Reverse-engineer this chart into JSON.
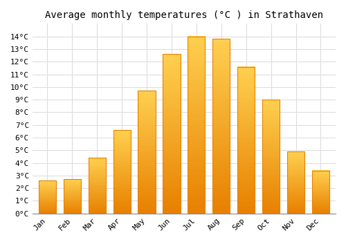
{
  "title": "Average monthly temperatures (°C ) in Strathaven",
  "months": [
    "Jan",
    "Feb",
    "Mar",
    "Apr",
    "May",
    "Jun",
    "Jul",
    "Aug",
    "Sep",
    "Oct",
    "Nov",
    "Dec"
  ],
  "values": [
    2.6,
    2.7,
    4.4,
    6.6,
    9.7,
    12.6,
    14.0,
    13.8,
    11.6,
    9.0,
    4.9,
    3.4
  ],
  "bar_color": "#FFA500",
  "bar_color_light": "#FFD050",
  "bar_color_dark": "#E88000",
  "ylim": [
    0,
    15
  ],
  "yticks": [
    0,
    1,
    2,
    3,
    4,
    5,
    6,
    7,
    8,
    9,
    10,
    11,
    12,
    13,
    14
  ],
  "ytick_labels": [
    "0°C",
    "1°C",
    "2°C",
    "3°C",
    "4°C",
    "5°C",
    "6°C",
    "7°C",
    "8°C",
    "9°C",
    "10°C",
    "11°C",
    "12°C",
    "13°C",
    "14°C"
  ],
  "background_color": "#FFFFFF",
  "grid_color": "#DDDDDD",
  "title_fontsize": 10,
  "tick_fontsize": 8,
  "font_family": "monospace"
}
